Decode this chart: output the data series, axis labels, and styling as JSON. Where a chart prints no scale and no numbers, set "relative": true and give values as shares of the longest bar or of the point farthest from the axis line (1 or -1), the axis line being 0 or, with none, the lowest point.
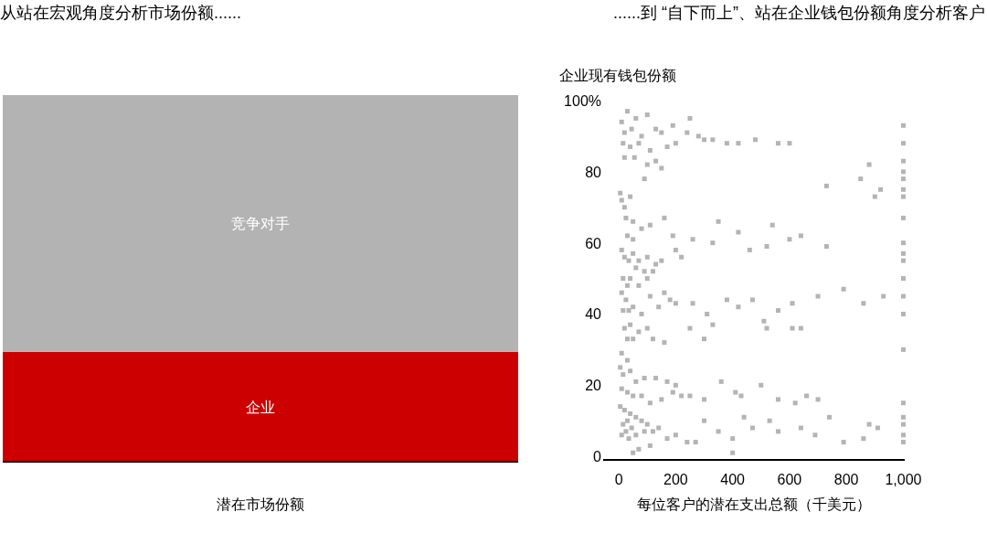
{
  "chart_data": [
    {
      "type": "bar",
      "title": "从站在宏观角度分析市场份额......",
      "xlabel": "潜在市场份额",
      "categories": [
        null
      ],
      "relative": true,
      "stacked": true,
      "series": [
        {
          "name": "企业",
          "color": "#cc0000",
          "values": [
            0.3
          ]
        },
        {
          "name": "竞争对手",
          "color": "#b3b3b3",
          "values": [
            0.7
          ]
        }
      ]
    },
    {
      "type": "scatter",
      "title": "......到 “自下而上”、站在企业钱包份额角度分析客户",
      "xlabel": "每位客户的潜在支出总额（千美元）",
      "ylabel": "企业现有钱包份额",
      "marker": "square",
      "xlim": [
        -55,
        1005
      ],
      "ylim": [
        -1,
        100
      ],
      "xticks": [
        0,
        200,
        400,
        600,
        800,
        {
          "value": 1000,
          "label": "1,000"
        }
      ],
      "yticks": [
        0,
        20,
        40,
        60,
        80,
        {
          "value": 100,
          "label": "100%"
        }
      ],
      "series": [
        {
          "color": "#b4b4b4",
          "x": [
            1000,
            1000,
            1000,
            1000,
            1000,
            1000,
            1000,
            1000,
            1000,
            1000,
            1000,
            1000,
            1000,
            1000,
            1000,
            1000,
            1000,
            1000,
            1000,
            1000,
            30,
            10,
            60,
            100,
            20,
            45,
            80,
            130,
            150,
            190,
            250,
            240,
            280,
            15,
            40,
            70,
            110,
            170,
            200,
            300,
            330,
            380,
            420,
            480,
            560,
            20,
            55,
            100,
            130,
            150,
            90,
            600,
            730,
            850,
            880,
            900,
            920,
            5,
            10,
            20,
            40,
            25,
            50,
            80,
            30,
            50,
            110,
            160,
            190,
            260,
            330,
            350,
            420,
            540,
            520,
            460,
            600,
            640,
            730,
            10,
            20,
            35,
            50,
            70,
            100,
            130,
            150,
            200,
            220,
            60,
            90,
            40,
            15,
            30,
            70,
            100,
            120,
            160,
            180,
            10,
            25,
            50,
            15,
            35,
            80,
            110,
            140,
            200,
            260,
            310,
            380,
            420,
            470,
            510,
            560,
            610,
            700,
            790,
            860,
            930,
            40,
            20,
            70,
            100,
            250,
            300,
            330,
            520,
            610,
            640,
            30,
            50,
            120,
            160,
            10,
            30,
            5,
            15,
            40,
            60,
            90,
            130,
            170,
            200,
            10,
            30,
            50,
            80,
            110,
            150,
            190,
            220,
            250,
            300,
            360,
            410,
            430,
            500,
            560,
            620,
            660,
            700,
            5,
            20,
            40,
            60,
            80,
            100,
            30,
            15,
            45,
            25,
            10,
            35,
            60,
            90,
            120,
            140,
            170,
            200,
            240,
            270,
            300,
            350,
            400,
            440,
            470,
            530,
            560,
            640,
            690,
            740,
            790,
            860,
            880,
            910,
            400,
            50,
            70,
            110
          ],
          "values": [
            93,
            88,
            83,
            80,
            78,
            75,
            73,
            67,
            60,
            57,
            55,
            50,
            45,
            40,
            30,
            15,
            11,
            9,
            6,
            4,
            97,
            94,
            95,
            96,
            91,
            92,
            90,
            92,
            91,
            93,
            95,
            91,
            90,
            88,
            87,
            88,
            86,
            87,
            88,
            89,
            89,
            88,
            88,
            89,
            88,
            84,
            84,
            82,
            83,
            81,
            78,
            88,
            76,
            78,
            82,
            73,
            75,
            74,
            72,
            70,
            73,
            67,
            66,
            64,
            62,
            61,
            65,
            67,
            62,
            61,
            60,
            66,
            63,
            65,
            59,
            58,
            61,
            62,
            59,
            58,
            56,
            55,
            57,
            55,
            56,
            54,
            55,
            58,
            56,
            53,
            52,
            50,
            50,
            48,
            48,
            50,
            52,
            46,
            44,
            46,
            44,
            42,
            41,
            41,
            40,
            45,
            42,
            43,
            43,
            40,
            44,
            42,
            44,
            38,
            41,
            43,
            45,
            47,
            43,
            45,
            37,
            36,
            35,
            36,
            36,
            33,
            37,
            36,
            36,
            36,
            33,
            33,
            33,
            32,
            29,
            27,
            25,
            23,
            24,
            21,
            22,
            22,
            21,
            20,
            19,
            18,
            17,
            17,
            15,
            16,
            18,
            17,
            17,
            16,
            21,
            18,
            17,
            20,
            16,
            15,
            17,
            16,
            14,
            13,
            12,
            11,
            10,
            9,
            10,
            9,
            8,
            7,
            6,
            5,
            6,
            7,
            7,
            8,
            5,
            6,
            4,
            4,
            10,
            7,
            5,
            11,
            8,
            10,
            7,
            8,
            6,
            11,
            4,
            5,
            9,
            8,
            1,
            1,
            2,
            3
          ]
        }
      ]
    }
  ]
}
